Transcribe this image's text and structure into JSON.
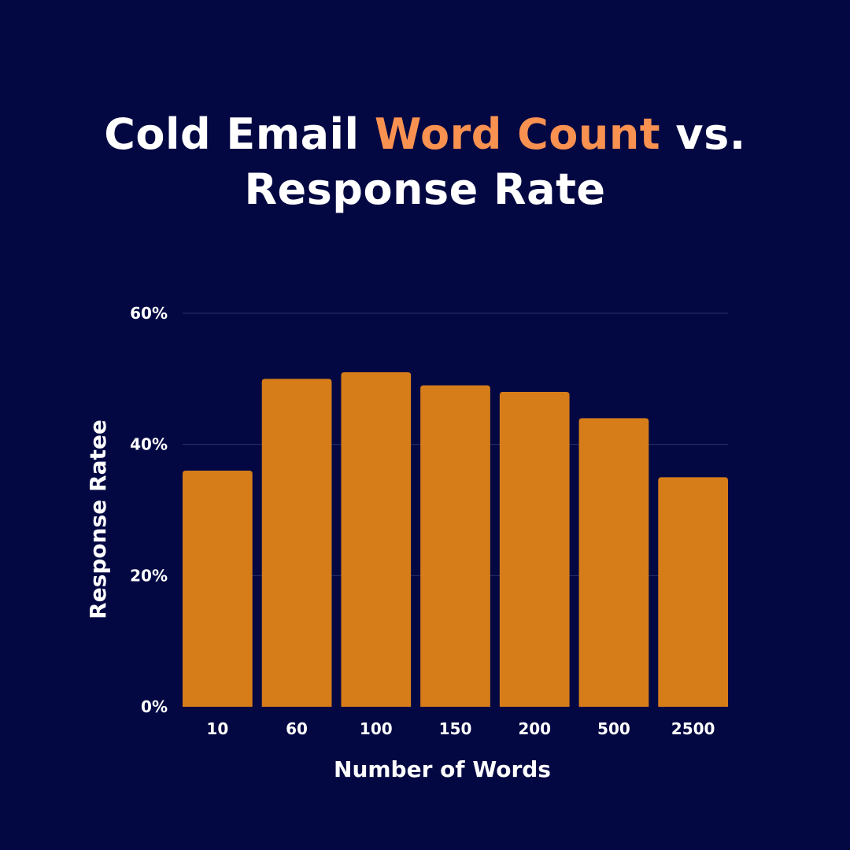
{
  "title": {
    "part1": "Cold Email ",
    "highlight": "Word Count",
    "part2": " vs.",
    "line2": "Response Rate"
  },
  "colors": {
    "background": "#030843",
    "bar": "#d67d1a",
    "highlight": "#f99150",
    "text": "#ffffff",
    "grid": "#2a3066"
  },
  "chart_data": {
    "type": "bar",
    "categories": [
      "10",
      "60",
      "100",
      "150",
      "200",
      "500",
      "2500"
    ],
    "values": [
      36,
      50,
      51,
      49,
      48,
      44,
      35
    ],
    "xlabel": "Number of Words",
    "ylabel": "Response Ratee",
    "ylim": [
      0,
      60
    ],
    "yticks": [
      0,
      20,
      40,
      60
    ],
    "ytick_labels": [
      "0%",
      "20%",
      "40%",
      "60%"
    ],
    "grid": true
  }
}
